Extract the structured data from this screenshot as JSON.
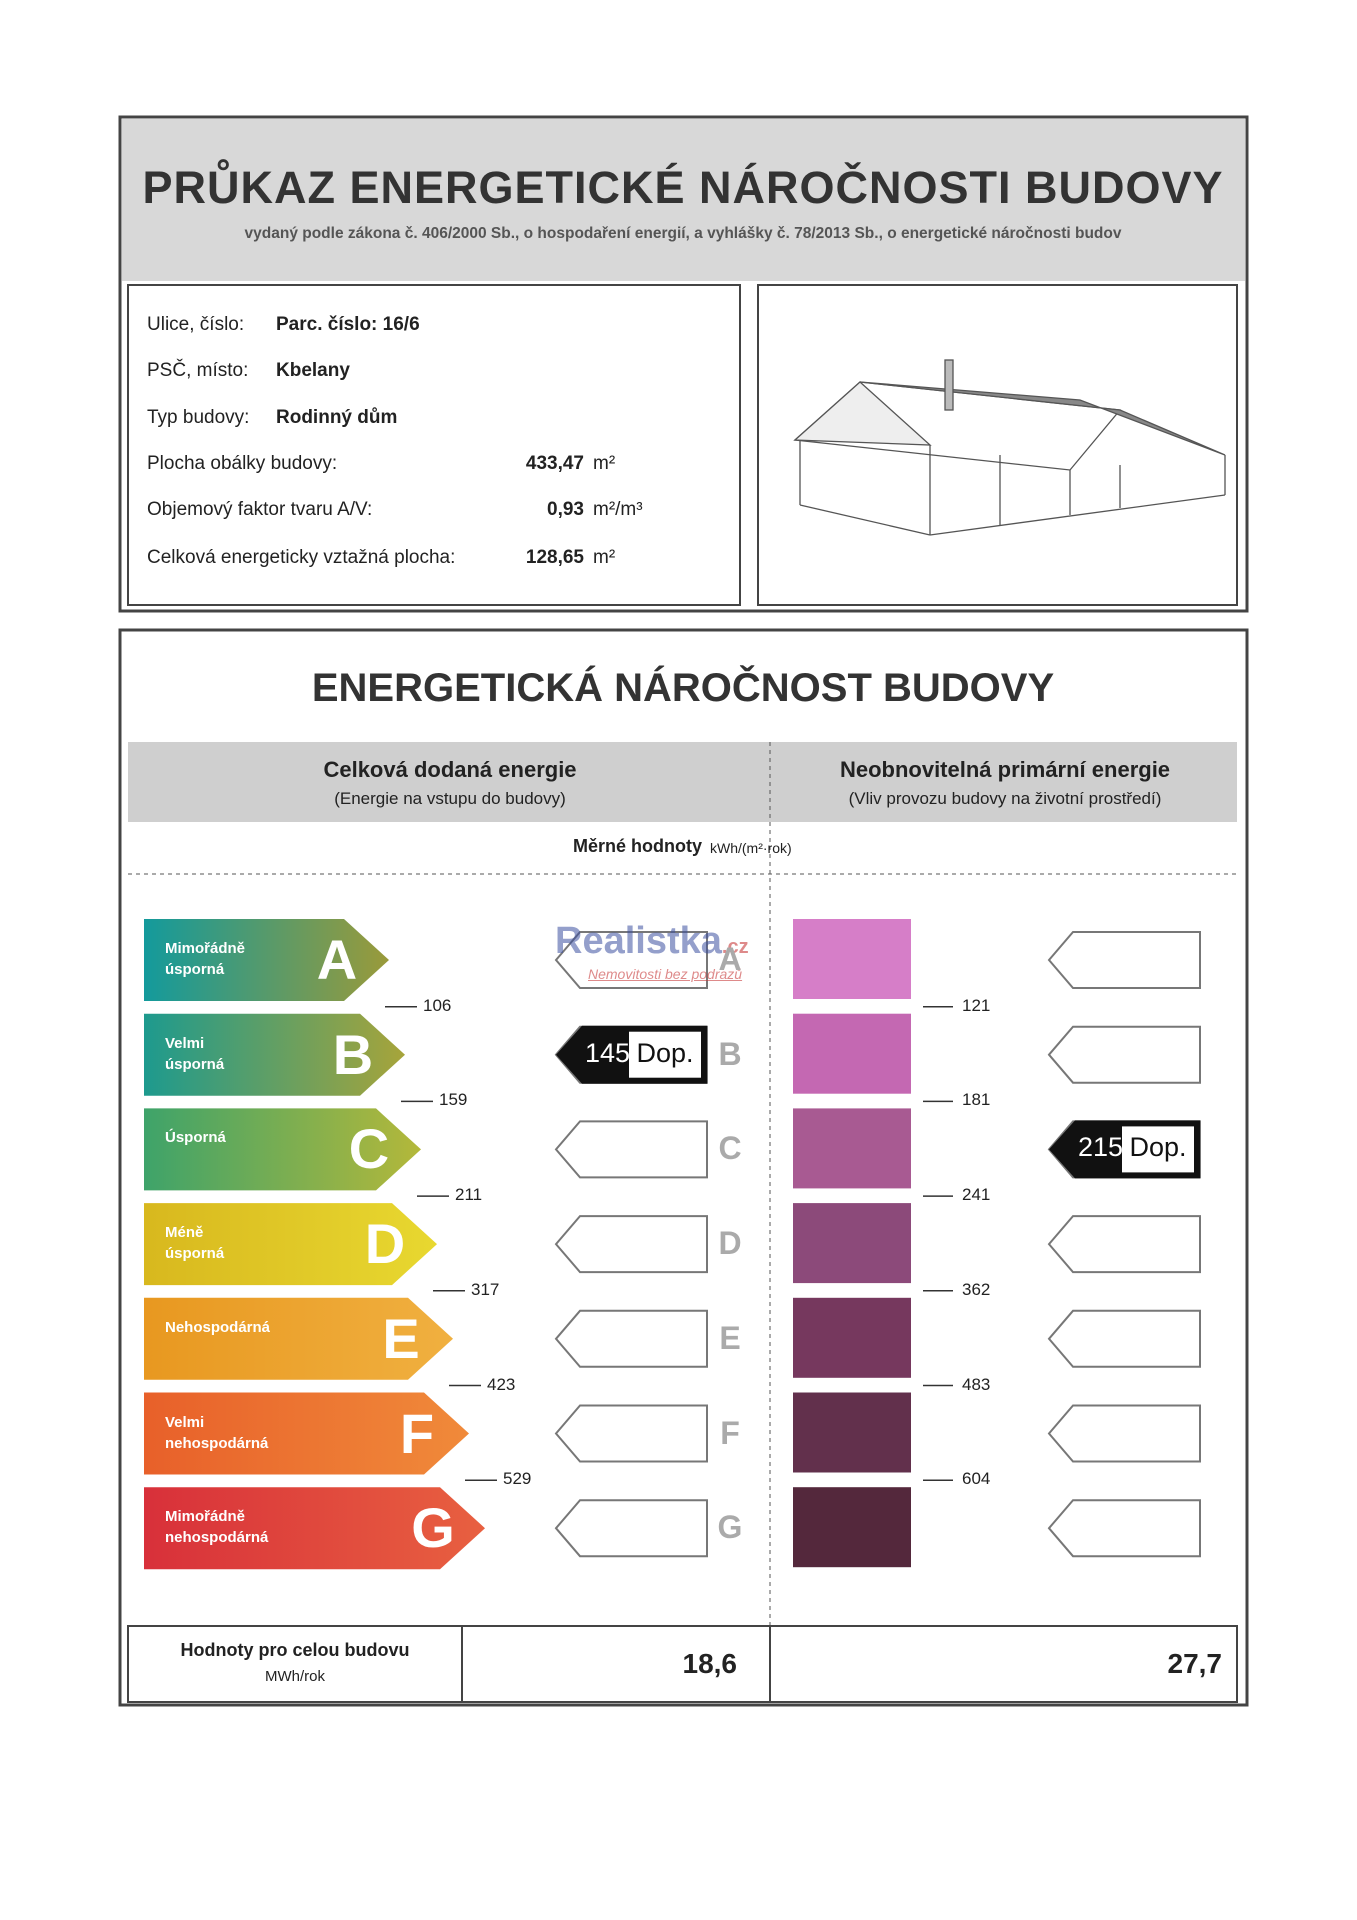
{
  "header": {
    "title": "PRŮKAZ ENERGETICKÉ NÁROČNOSTI BUDOVY",
    "subtitle": "vydaný podle zákona č. 406/2000 Sb., o hospodaření energií, a vyhlášky č. 78/2013 Sb., o energetické náročnosti budov"
  },
  "info": {
    "rows": [
      {
        "label": "Ulice, číslo:",
        "value": "Parc. číslo: 16/6"
      },
      {
        "label": "PSČ, místo:",
        "value": "Kbelany"
      },
      {
        "label": "Typ budovy:",
        "value": "Rodinný dům"
      },
      {
        "label": "Plocha obálky budovy:",
        "number": "433,47",
        "unit": "m²"
      },
      {
        "label": "Objemový faktor tvaru A/V:",
        "number": "0,93",
        "unit": "m²/m³"
      },
      {
        "label": "Celková energeticky vztažná plocha:",
        "number": "128,65",
        "unit": "m²"
      }
    ]
  },
  "energy": {
    "title": "ENERGETICKÁ NÁROČNOST BUDOVY",
    "left": {
      "title": "Celková dodaná energie",
      "subtitle": "(Energie na vstupu do budovy)",
      "thresholds": [
        106,
        159,
        211,
        317,
        423,
        529
      ],
      "rating": {
        "value": 145,
        "text": "Dop."
      }
    },
    "right": {
      "title": "Neobnovitelná primární energie",
      "subtitle": "(Vliv provozu budovy na životní prostředí)",
      "thresholds": [
        121,
        181,
        241,
        362,
        483,
        604
      ],
      "rating": {
        "value": 215,
        "text": "Dop."
      }
    },
    "specific_label": "Měrné hodnoty",
    "specific_unit": "kWh/(m²·rok)",
    "classes": [
      {
        "letter": "A",
        "label": "Mimořádně úsporná"
      },
      {
        "letter": "B",
        "label": "Velmi úsporná"
      },
      {
        "letter": "C",
        "label": "Úsporná"
      },
      {
        "letter": "D",
        "label": "Méně úsporná"
      },
      {
        "letter": "E",
        "label": "Nehospodárná"
      },
      {
        "letter": "F",
        "label": "Velmi nehospodárná"
      },
      {
        "letter": "G",
        "label": "Mimořádně nehospodárná"
      }
    ],
    "totals": {
      "label": "Hodnoty pro celou budovu",
      "unit": "MWh/rok",
      "left": "18,6",
      "right": "27,7"
    }
  },
  "watermark": {
    "brand": "Realistka",
    "domain": ".cz",
    "tagline": "Nemovitosti bez podrazů"
  }
}
